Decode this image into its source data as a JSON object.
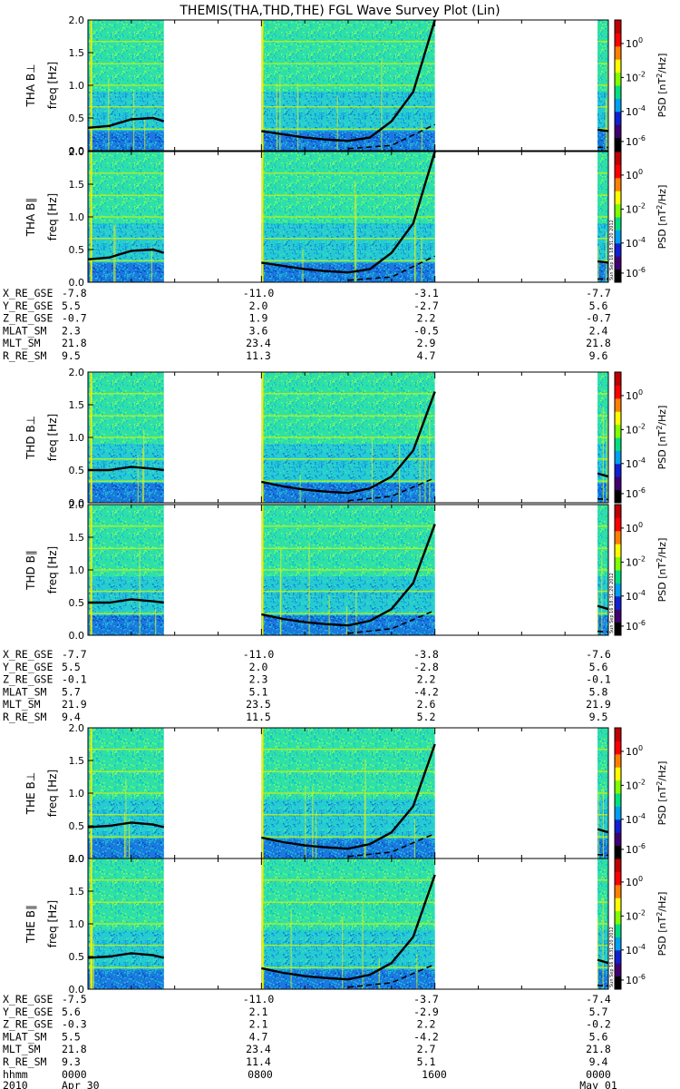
{
  "chart_data": {
    "type": "heatmap",
    "title": "THEMIS(THA,THD,THE) FGL Wave Survey Plot (Lin)",
    "time_axis": {
      "labels": [
        "hhmm",
        "2010"
      ],
      "ticks": [
        {
          "hhmm": "0000",
          "date": "Apr 30"
        },
        {
          "hhmm": "0800",
          "date": ""
        },
        {
          "hhmm": "1600",
          "date": ""
        },
        {
          "hhmm": "0000",
          "date": "May 01"
        }
      ]
    },
    "freq_axis": {
      "ylabel": "freq [Hz]",
      "ylim": [
        0,
        2.0
      ],
      "ticks": [
        "0.0",
        "0.5",
        "1.0",
        "1.5",
        "2.0"
      ]
    },
    "colorbar": {
      "label": "PSD [nT^2/Hz]",
      "scale": "log",
      "ticks": [
        "10^0",
        "10^-2",
        "10^-4",
        "10^-6"
      ],
      "colors": [
        "#000000",
        "#400070",
        "#1020d0",
        "#00a0f0",
        "#00e080",
        "#80ff00",
        "#ffff00",
        "#ff8000",
        "#ff0000",
        "#c00000"
      ]
    },
    "stamp": "Sun Sep 16 18:31:20 2012",
    "coverage_hours": [
      [
        0,
        3.5
      ],
      [
        8,
        16
      ],
      [
        23.5,
        24
      ]
    ],
    "panels": [
      {
        "probe": "THA",
        "component": "B⊥",
        "solid": [
          [
            0,
            0.35
          ],
          [
            1,
            0.38
          ],
          [
            2,
            0.48
          ],
          [
            3,
            0.5
          ],
          [
            3.5,
            0.45
          ],
          [
            8,
            0.3
          ],
          [
            9,
            0.25
          ],
          [
            10,
            0.2
          ],
          [
            11,
            0.17
          ],
          [
            12,
            0.15
          ],
          [
            13,
            0.2
          ],
          [
            14,
            0.45
          ],
          [
            15,
            0.9
          ],
          [
            16,
            2.0
          ],
          [
            23.5,
            0.32
          ],
          [
            24,
            0.3
          ]
        ],
        "dashed": [
          [
            0,
            0.1
          ],
          [
            3.5,
            0.06
          ],
          [
            8,
            0.04
          ],
          [
            12,
            0.03
          ],
          [
            14,
            0.08
          ],
          [
            16,
            0.4
          ],
          [
            23.5,
            0.05
          ],
          [
            24,
            0.05
          ]
        ]
      },
      {
        "probe": "THA",
        "component": "B∥",
        "solid": [
          [
            0,
            0.35
          ],
          [
            1,
            0.38
          ],
          [
            2,
            0.48
          ],
          [
            3,
            0.5
          ],
          [
            3.5,
            0.45
          ],
          [
            8,
            0.3
          ],
          [
            9,
            0.25
          ],
          [
            10,
            0.2
          ],
          [
            11,
            0.17
          ],
          [
            12,
            0.15
          ],
          [
            13,
            0.2
          ],
          [
            14,
            0.45
          ],
          [
            15,
            0.9
          ],
          [
            16,
            2.0
          ],
          [
            23.5,
            0.32
          ],
          [
            24,
            0.3
          ]
        ],
        "dashed": [
          [
            0,
            0.1
          ],
          [
            3.5,
            0.06
          ],
          [
            8,
            0.04
          ],
          [
            12,
            0.03
          ],
          [
            14,
            0.08
          ],
          [
            16,
            0.4
          ],
          [
            23.5,
            0.05
          ],
          [
            24,
            0.05
          ]
        ]
      },
      {
        "probe": "THD",
        "component": "B⊥",
        "solid": [
          [
            0,
            0.5
          ],
          [
            1,
            0.5
          ],
          [
            2,
            0.55
          ],
          [
            3,
            0.52
          ],
          [
            3.5,
            0.5
          ],
          [
            8,
            0.32
          ],
          [
            9,
            0.25
          ],
          [
            10,
            0.2
          ],
          [
            11,
            0.17
          ],
          [
            12,
            0.15
          ],
          [
            13,
            0.22
          ],
          [
            14,
            0.4
          ],
          [
            15,
            0.8
          ],
          [
            16,
            1.7
          ],
          [
            23.5,
            0.45
          ],
          [
            24,
            0.4
          ]
        ],
        "dashed": [
          [
            0,
            0.08
          ],
          [
            3.5,
            0.06
          ],
          [
            8,
            0.04
          ],
          [
            12,
            0.03
          ],
          [
            14,
            0.1
          ],
          [
            16,
            0.38
          ],
          [
            23.5,
            0.06
          ],
          [
            24,
            0.05
          ]
        ]
      },
      {
        "probe": "THD",
        "component": "B∥",
        "solid": [
          [
            0,
            0.5
          ],
          [
            1,
            0.5
          ],
          [
            2,
            0.55
          ],
          [
            3,
            0.52
          ],
          [
            3.5,
            0.5
          ],
          [
            8,
            0.32
          ],
          [
            9,
            0.25
          ],
          [
            10,
            0.2
          ],
          [
            11,
            0.17
          ],
          [
            12,
            0.15
          ],
          [
            13,
            0.22
          ],
          [
            14,
            0.4
          ],
          [
            15,
            0.8
          ],
          [
            16,
            1.7
          ],
          [
            23.5,
            0.45
          ],
          [
            24,
            0.4
          ]
        ],
        "dashed": [
          [
            0,
            0.08
          ],
          [
            3.5,
            0.06
          ],
          [
            8,
            0.04
          ],
          [
            12,
            0.03
          ],
          [
            14,
            0.1
          ],
          [
            16,
            0.38
          ],
          [
            23.5,
            0.06
          ],
          [
            24,
            0.05
          ]
        ]
      },
      {
        "probe": "THE",
        "component": "B⊥",
        "solid": [
          [
            0,
            0.48
          ],
          [
            1,
            0.5
          ],
          [
            2,
            0.55
          ],
          [
            3,
            0.52
          ],
          [
            3.5,
            0.48
          ],
          [
            8,
            0.32
          ],
          [
            9,
            0.25
          ],
          [
            10,
            0.2
          ],
          [
            11,
            0.17
          ],
          [
            12,
            0.15
          ],
          [
            13,
            0.22
          ],
          [
            14,
            0.4
          ],
          [
            15,
            0.8
          ],
          [
            16,
            1.75
          ],
          [
            23.5,
            0.45
          ],
          [
            24,
            0.4
          ]
        ],
        "dashed": [
          [
            0,
            0.08
          ],
          [
            3.5,
            0.06
          ],
          [
            8,
            0.04
          ],
          [
            12,
            0.03
          ],
          [
            14,
            0.1
          ],
          [
            16,
            0.38
          ],
          [
            23.5,
            0.06
          ],
          [
            24,
            0.05
          ]
        ]
      },
      {
        "probe": "THE",
        "component": "B∥",
        "solid": [
          [
            0,
            0.48
          ],
          [
            1,
            0.5
          ],
          [
            2,
            0.55
          ],
          [
            3,
            0.52
          ],
          [
            3.5,
            0.48
          ],
          [
            8,
            0.32
          ],
          [
            9,
            0.25
          ],
          [
            10,
            0.2
          ],
          [
            11,
            0.17
          ],
          [
            12,
            0.15
          ],
          [
            13,
            0.22
          ],
          [
            14,
            0.4
          ],
          [
            15,
            0.8
          ],
          [
            16,
            1.75
          ],
          [
            23.5,
            0.45
          ],
          [
            24,
            0.4
          ]
        ],
        "dashed": [
          [
            0,
            0.08
          ],
          [
            3.5,
            0.06
          ],
          [
            8,
            0.04
          ],
          [
            12,
            0.03
          ],
          [
            14,
            0.1
          ],
          [
            16,
            0.38
          ],
          [
            23.5,
            0.06
          ],
          [
            24,
            0.05
          ]
        ]
      }
    ],
    "ephemeris_tables": [
      {
        "probe": "THA",
        "rows": [
          {
            "label": "X_RE_GSE",
            "values": [
              "-7.8",
              "-11.0",
              "-3.1",
              "-7.7"
            ]
          },
          {
            "label": "Y_RE_GSE",
            "values": [
              "5.5",
              "2.0",
              "-2.7",
              "5.6"
            ]
          },
          {
            "label": "Z_RE_GSE",
            "values": [
              "-0.7",
              "1.9",
              "2.2",
              "-0.7"
            ]
          },
          {
            "label": "MLAT_SM",
            "values": [
              "2.3",
              "3.6",
              "-0.5",
              "2.4"
            ]
          },
          {
            "label": "MLT_SM",
            "values": [
              "21.8",
              "23.4",
              "2.9",
              "21.8"
            ]
          },
          {
            "label": "R_RE_SM",
            "values": [
              "9.5",
              "11.3",
              "4.7",
              "9.6"
            ]
          }
        ]
      },
      {
        "probe": "THD",
        "rows": [
          {
            "label": "X_RE_GSE",
            "values": [
              "-7.7",
              "-11.0",
              "-3.8",
              "-7.6"
            ]
          },
          {
            "label": "Y_RE_GSE",
            "values": [
              "5.5",
              "2.0",
              "-2.8",
              "5.6"
            ]
          },
          {
            "label": "Z_RE_GSE",
            "values": [
              "-0.1",
              "2.3",
              "2.2",
              "-0.1"
            ]
          },
          {
            "label": "MLAT_SM",
            "values": [
              "5.7",
              "5.1",
              "-4.2",
              "5.8"
            ]
          },
          {
            "label": "MLT_SM",
            "values": [
              "21.9",
              "23.5",
              "2.6",
              "21.9"
            ]
          },
          {
            "label": "R_RE_SM",
            "values": [
              "9.4",
              "11.5",
              "5.2",
              "9.5"
            ]
          }
        ]
      },
      {
        "probe": "THE",
        "rows": [
          {
            "label": "X_RE_GSE",
            "values": [
              "-7.5",
              "-11.0",
              "-3.7",
              "-7.4"
            ]
          },
          {
            "label": "Y_RE_GSE",
            "values": [
              "5.6",
              "2.1",
              "-2.9",
              "5.7"
            ]
          },
          {
            "label": "Z_RE_GSE",
            "values": [
              "-0.3",
              "2.1",
              "2.2",
              "-0.2"
            ]
          },
          {
            "label": "MLAT_SM",
            "values": [
              "5.5",
              "4.7",
              "-4.2",
              "5.6"
            ]
          },
          {
            "label": "MLT_SM",
            "values": [
              "21.8",
              "23.4",
              "2.7",
              "21.8"
            ]
          },
          {
            "label": "R_RE_SM",
            "values": [
              "9.3",
              "11.4",
              "5.1",
              "9.4"
            ]
          }
        ]
      }
    ]
  }
}
